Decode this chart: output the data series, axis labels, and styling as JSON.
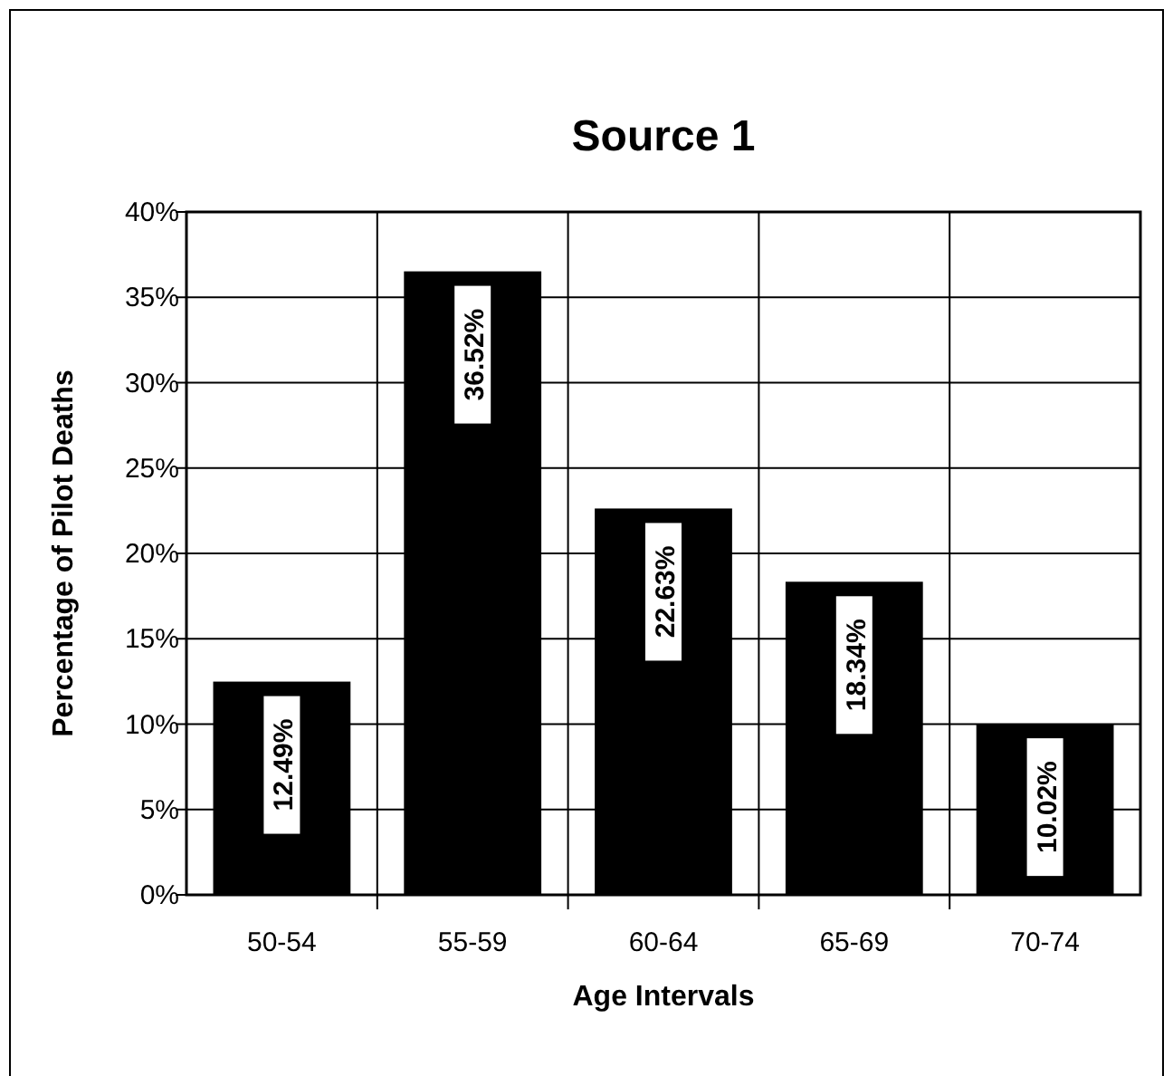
{
  "chart_data": {
    "type": "bar",
    "title": "Source 1",
    "xlabel": "Age Intervals",
    "ylabel": "Percentage  of Pilot Deaths",
    "categories": [
      "50-54",
      "55-59",
      "60-64",
      "65-69",
      "70-74"
    ],
    "values": [
      12.49,
      36.52,
      22.63,
      18.34,
      10.02
    ],
    "value_labels": [
      "12.49%",
      "36.52%",
      "22.63%",
      "18.34%",
      "10.02%"
    ],
    "color": "#000000",
    "ylim": [
      0,
      40
    ],
    "yticks": [
      {
        "value": 0,
        "label": "0%"
      },
      {
        "value": 5,
        "label": "5%"
      },
      {
        "value": 10,
        "label": "10%"
      },
      {
        "value": 15,
        "label": "15%"
      },
      {
        "value": 20,
        "label": "20%"
      },
      {
        "value": 25,
        "label": "25%"
      },
      {
        "value": 30,
        "label": "30%"
      },
      {
        "value": 35,
        "label": "35%"
      },
      {
        "value": 40,
        "label": "40%"
      }
    ],
    "grid": true
  }
}
